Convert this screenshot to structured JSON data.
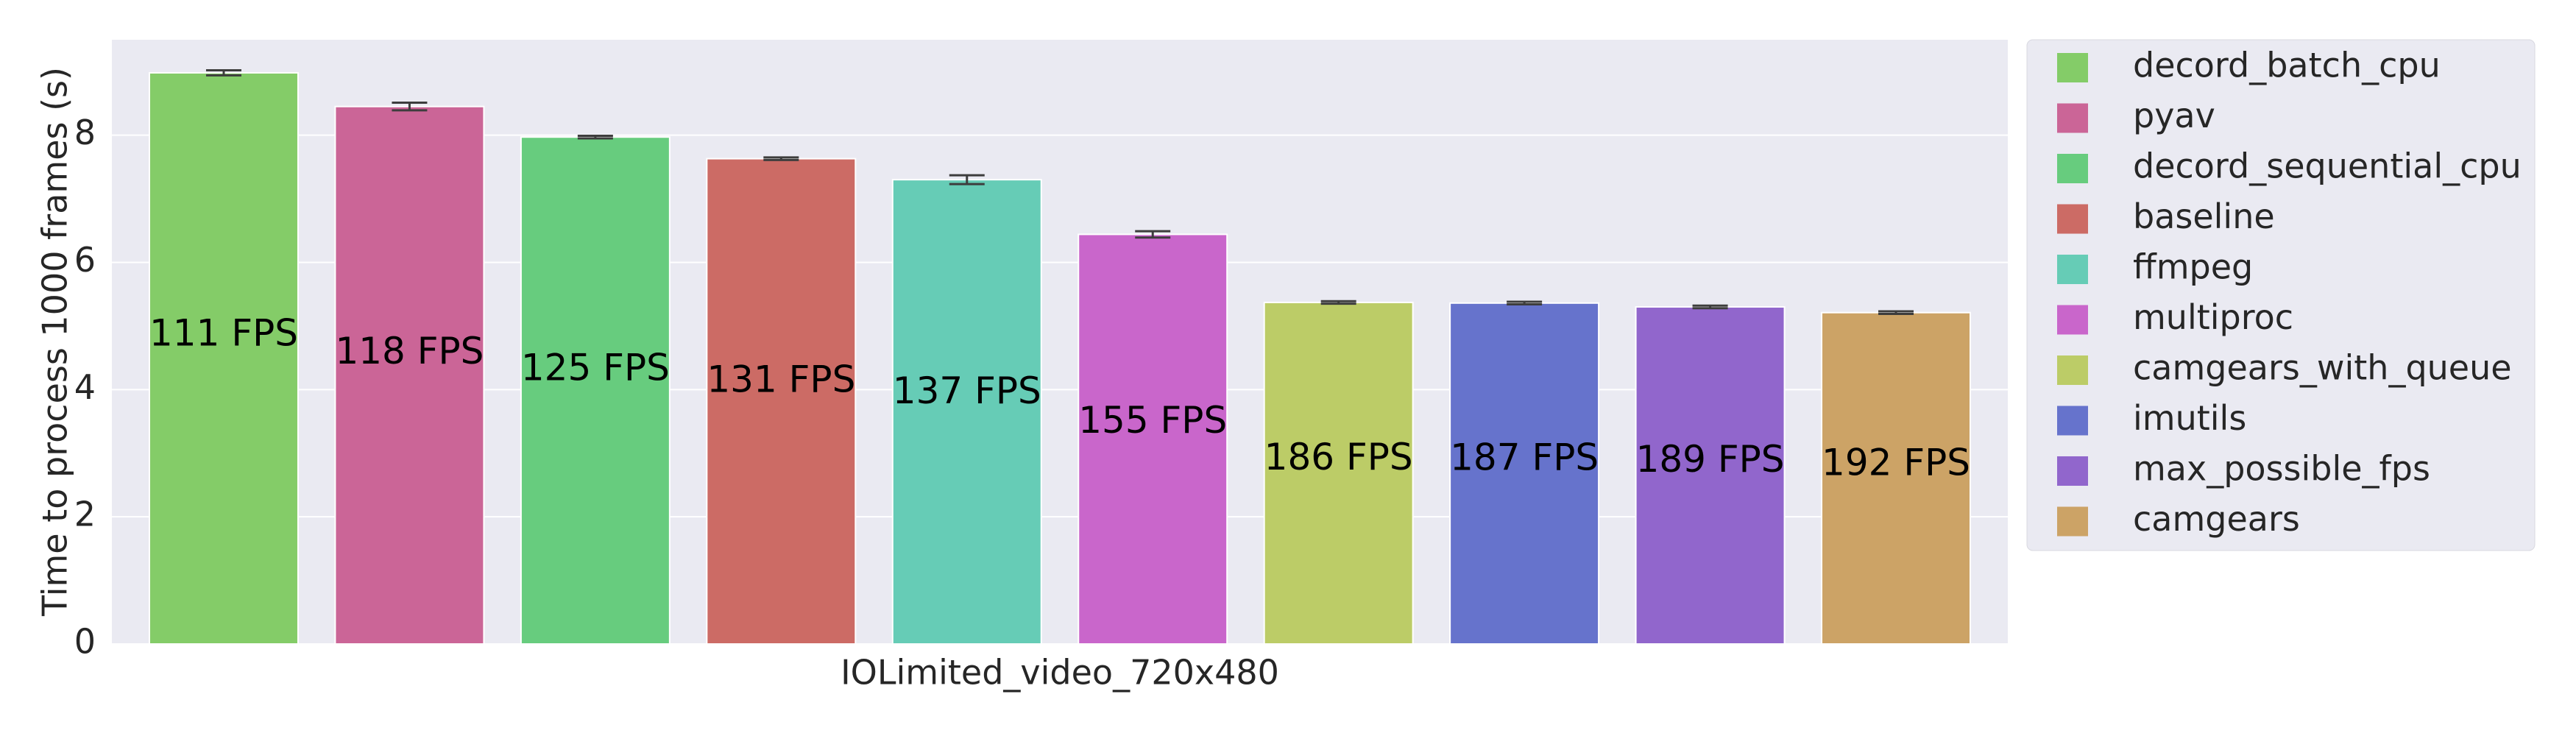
{
  "chart_data": {
    "type": "bar",
    "y_label": "Time to process 1000 frames (s)",
    "categories": [
      "IOLimited_video_720x480"
    ],
    "ylim": [
      0,
      9.5
    ],
    "yticks": [
      0,
      2,
      4,
      6,
      8
    ],
    "grid": true,
    "legend": "right",
    "series": [
      {
        "name": "decord_batch_cpu",
        "color": "#84cc68",
        "values": [
          8.98
        ],
        "errors": [
          0.04
        ],
        "bar_label": "111 FPS"
      },
      {
        "name": "pyav",
        "color": "#cb6597",
        "values": [
          8.45
        ],
        "errors": [
          0.06
        ],
        "bar_label": "118 FPS"
      },
      {
        "name": "decord_sequential_cpu",
        "color": "#67cc7e",
        "values": [
          7.97
        ],
        "errors": [
          0.02
        ],
        "bar_label": "125 FPS"
      },
      {
        "name": "baseline",
        "color": "#cc6b65",
        "values": [
          7.63
        ],
        "errors": [
          0.02
        ],
        "bar_label": "131 FPS"
      },
      {
        "name": "ffmpeg",
        "color": "#66ccb6",
        "values": [
          7.3
        ],
        "errors": [
          0.07
        ],
        "bar_label": "137 FPS"
      },
      {
        "name": "multiproc",
        "color": "#c966cb",
        "values": [
          6.44
        ],
        "errors": [
          0.05
        ],
        "bar_label": "155 FPS"
      },
      {
        "name": "camgears_with_queue",
        "color": "#bccc67",
        "values": [
          5.37
        ],
        "errors": [
          0.02
        ],
        "bar_label": "186 FPS"
      },
      {
        "name": "imutils",
        "color": "#6673cc",
        "values": [
          5.36
        ],
        "errors": [
          0.02
        ],
        "bar_label": "187 FPS"
      },
      {
        "name": "max_possible_fps",
        "color": "#9166cc",
        "values": [
          5.3
        ],
        "errors": [
          0.02
        ],
        "bar_label": "189 FPS"
      },
      {
        "name": "camgears",
        "color": "#cca366",
        "values": [
          5.21
        ],
        "errors": [
          0.02
        ],
        "bar_label": "192 FPS"
      }
    ]
  }
}
